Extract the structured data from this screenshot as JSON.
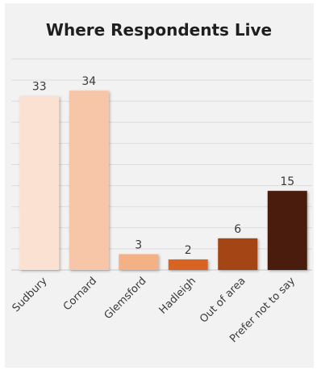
{
  "chart_data": {
    "type": "bar",
    "title": "Where Respondents Live",
    "xlabel": "",
    "ylabel": "",
    "categories": [
      "Sudbury",
      "Cornard",
      "Glemsford",
      "Hadleigh",
      "Out of area",
      "Prefer not to say"
    ],
    "values": [
      33,
      34,
      3,
      2,
      6,
      15
    ],
    "colors": [
      "#fbe1d2",
      "#f7c6a8",
      "#f4b185",
      "#d96322",
      "#a44516",
      "#4a1f0a"
    ],
    "ylim": [
      0,
      40
    ],
    "grid": true,
    "legend": "none",
    "background": "#f2f2f2"
  }
}
